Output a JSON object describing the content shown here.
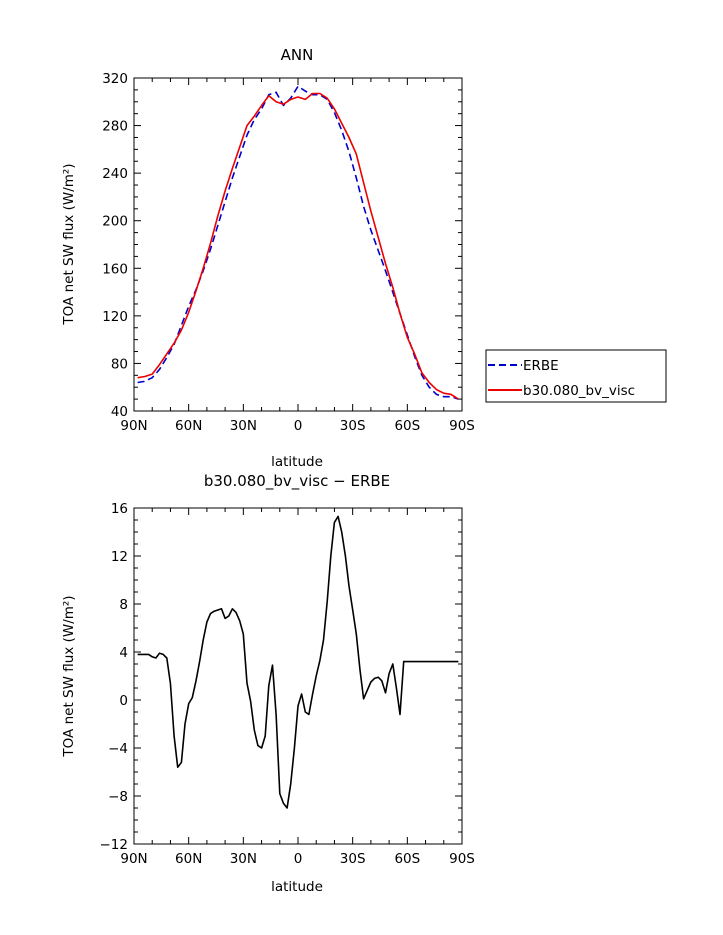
{
  "chart_data": [
    {
      "type": "line",
      "title": "ANN",
      "xlabel": "latitude",
      "ylabel": "TOA net SW flux (W/m²)",
      "xlim": [
        90,
        -90
      ],
      "ylim": [
        40,
        320
      ],
      "x_ticks": [
        90,
        60,
        30,
        0,
        -30,
        -60,
        -90
      ],
      "x_tick_labels": [
        "90N",
        "60N",
        "30N",
        "0",
        "30S",
        "60S",
        "90S"
      ],
      "y_ticks": [
        40,
        80,
        120,
        160,
        200,
        240,
        280,
        320
      ],
      "y_tick_labels": [
        "40",
        "80",
        "120",
        "160",
        "200",
        "240",
        "280",
        "320"
      ],
      "legend": "outside-right",
      "series": [
        {
          "name": "ERBE",
          "color": "#0000cc",
          "style": "dashed",
          "x": [
            88,
            84,
            80,
            76,
            72,
            68,
            64,
            60,
            56,
            52,
            48,
            44,
            40,
            36,
            32,
            28,
            24,
            20,
            16,
            12,
            8,
            4,
            0,
            -4,
            -8,
            -12,
            -16,
            -20,
            -24,
            -28,
            -32,
            -36,
            -40,
            -44,
            -48,
            -52,
            -56,
            -60,
            -64,
            -68,
            -72,
            -76,
            -80,
            -84,
            -88
          ],
          "values": [
            64,
            65,
            68,
            75,
            85,
            96,
            112,
            128,
            142,
            158,
            176,
            196,
            216,
            236,
            254,
            272,
            285,
            294,
            306,
            308,
            297,
            303,
            313,
            309,
            306,
            306,
            302,
            291,
            276,
            258,
            236,
            212,
            192,
            175,
            158,
            140,
            122,
            104,
            86,
            70,
            60,
            54,
            52,
            52,
            50
          ]
        },
        {
          "name": "b30.080_bv_visc",
          "color": "#ee0000",
          "style": "solid",
          "x": [
            88,
            84,
            80,
            76,
            72,
            68,
            64,
            60,
            56,
            52,
            48,
            44,
            40,
            36,
            32,
            28,
            24,
            20,
            16,
            12,
            8,
            4,
            0,
            -4,
            -8,
            -12,
            -16,
            -20,
            -24,
            -28,
            -32,
            -36,
            -40,
            -44,
            -48,
            -52,
            -56,
            -60,
            -64,
            -68,
            -72,
            -76,
            -80,
            -84,
            -88
          ],
          "values": [
            68,
            69,
            71,
            79,
            88,
            97,
            108,
            123,
            141,
            160,
            181,
            204,
            225,
            244,
            262,
            280,
            288,
            297,
            305,
            300,
            298,
            302,
            304,
            302,
            307,
            307,
            303,
            294,
            282,
            270,
            256,
            232,
            208,
            186,
            164,
            144,
            122,
            102,
            88,
            72,
            64,
            58,
            55,
            54,
            50
          ]
        }
      ]
    },
    {
      "type": "line",
      "title": "b30.080_bv_visc − ERBE",
      "xlabel": "latitude",
      "ylabel": "TOA net SW flux (W/m²)",
      "xlim": [
        90,
        -90
      ],
      "ylim": [
        -12,
        16
      ],
      "x_ticks": [
        90,
        60,
        30,
        0,
        -30,
        -60,
        -90
      ],
      "x_tick_labels": [
        "90N",
        "60N",
        "30N",
        "0",
        "30S",
        "60S",
        "90S"
      ],
      "y_ticks": [
        -12,
        -8,
        -4,
        0,
        4,
        8,
        12,
        16
      ],
      "y_tick_labels": [
        "−12",
        "−8",
        "−4",
        "0",
        "4",
        "8",
        "12",
        "16"
      ],
      "series": [
        {
          "color": "#000000",
          "style": "solid",
          "x": [
            88,
            84,
            82,
            80,
            78,
            76,
            74,
            72,
            70,
            68,
            66,
            64,
            62,
            60,
            58,
            56,
            54,
            52,
            50,
            48,
            46,
            44,
            42,
            40,
            38,
            36,
            34,
            32,
            30,
            28,
            26,
            24,
            22,
            20,
            18,
            16,
            14,
            12,
            10,
            8,
            6,
            4,
            2,
            0,
            -2,
            -4,
            -6,
            -8,
            -10,
            -12,
            -14,
            -16,
            -18,
            -20,
            -22,
            -24,
            -26,
            -28,
            -30,
            -32,
            -34,
            -36,
            -38,
            -40,
            -42,
            -44,
            -46,
            -48,
            -50,
            -52,
            -54,
            -56,
            -58,
            -60,
            -62,
            -64,
            -66,
            -68,
            -70,
            -72,
            -74,
            -76,
            -78,
            -80,
            -82,
            -84,
            -86,
            -88
          ],
          "values": [
            3.8,
            3.8,
            3.8,
            3.6,
            3.5,
            3.9,
            3.8,
            3.5,
            1.4,
            -3.0,
            -5.6,
            -5.2,
            -2.0,
            -0.3,
            0.2,
            1.6,
            3.2,
            5.0,
            6.5,
            7.2,
            7.4,
            7.5,
            7.6,
            6.8,
            7.0,
            7.6,
            7.3,
            6.6,
            5.5,
            1.4,
            -0.1,
            -2.5,
            -3.8,
            -4.0,
            -3.0,
            1.2,
            2.9,
            -1.2,
            -7.8,
            -8.6,
            -9.0,
            -7.0,
            -4.0,
            -0.5,
            0.5,
            -1.0,
            -1.2,
            0.5,
            2.0,
            3.3,
            5.0,
            8.2,
            12.0,
            14.8,
            15.3,
            14.0,
            12.0,
            9.5,
            7.5,
            5.5,
            2.5,
            0.1,
            0.8,
            1.5,
            1.8,
            1.9,
            1.6,
            0.6,
            2.2,
            3.0,
            1.0,
            -1.2,
            3.2,
            3.2,
            3.2,
            3.2,
            3.2,
            3.2,
            3.2,
            3.2,
            3.2,
            3.2,
            3.2,
            3.2,
            3.2,
            3.2,
            3.2,
            3.2
          ]
        }
      ]
    }
  ]
}
